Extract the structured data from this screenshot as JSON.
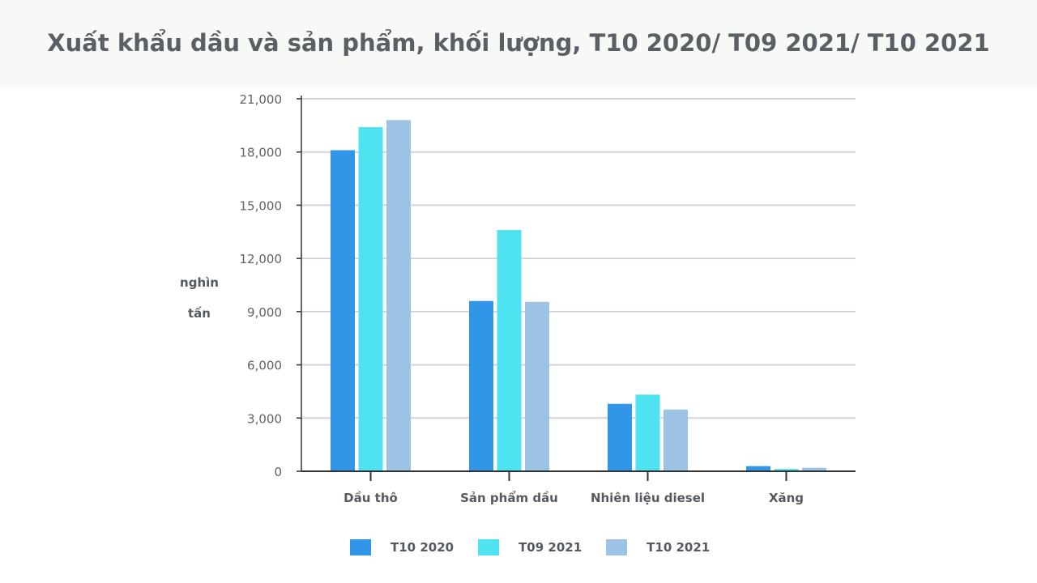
{
  "title": "Xuất khẩu dầu và sản phẩm, khối lượng, T10 2020/ T09 2021/ T10 2021",
  "colors": {
    "background_band": "#f7f9f6",
    "grid": "#d4d4d8",
    "axis": "#333333",
    "tick_text": "#5f6368",
    "label_text": "#555a60"
  },
  "chart_data": {
    "type": "bar",
    "title": "Xuất khẩu dầu và sản phẩm, khối lượng, T10 2020/ T09 2021/ T10 2021",
    "xlabel": "",
    "ylabel": "nghìn tấn",
    "categories": [
      "Dầu thô",
      "Sản phẩm dầu",
      "Nhiên liệu diesel",
      "Xăng"
    ],
    "series": [
      {
        "name": "T10 2020",
        "color": "#3296e8",
        "values": [
          18100,
          9600,
          3800,
          290
        ]
      },
      {
        "name": "T09 2021",
        "color": "#4fe3f1",
        "values": [
          19400,
          13600,
          4320,
          130
        ]
      },
      {
        "name": "T10 2021",
        "color": "#9cc3e3",
        "values": [
          19800,
          9550,
          3480,
          200
        ]
      }
    ],
    "yticks": [
      0,
      3000,
      6000,
      9000,
      12000,
      15000,
      18000,
      21000
    ],
    "ytick_labels": [
      "0",
      "3,000",
      "6,000",
      "9,000",
      "12,000",
      "15,000",
      "18,000",
      "21,000"
    ],
    "ylim": [
      0,
      21000
    ],
    "grid": true,
    "legend_position": "bottom"
  }
}
